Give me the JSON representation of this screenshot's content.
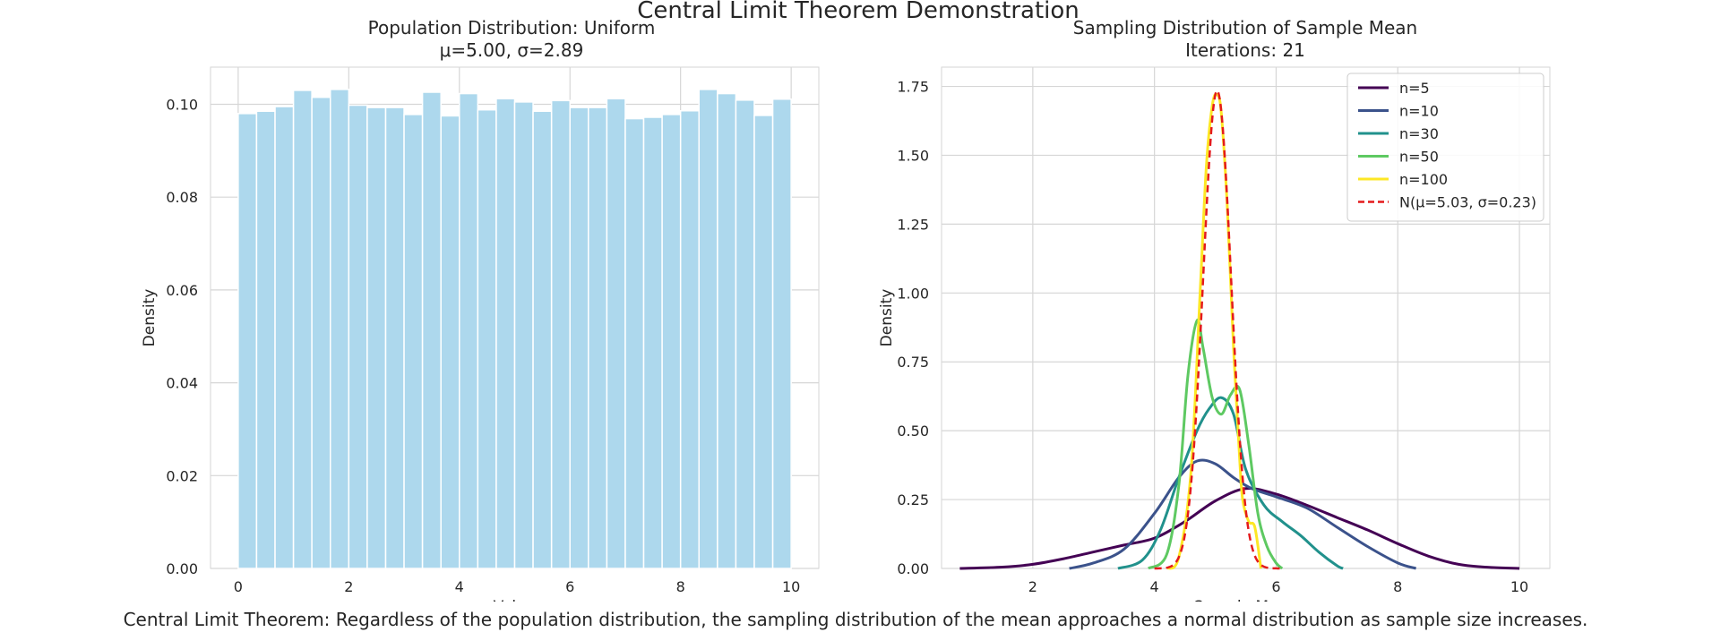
{
  "figure": {
    "suptitle": "Central Limit Theorem Demonstration",
    "caption": "Central Limit Theorem: Regardless of the population distribution, the sampling distribution of the mean approaches a normal distribution as sample size increases.",
    "colors": {
      "hist": "#add8ed",
      "grid": "#d6d6d6",
      "normal": "#e41a1c"
    }
  },
  "chart_data": [
    {
      "type": "bar",
      "title": "Population Distribution: Uniform",
      "subtitle": "μ=5.00, σ=2.89",
      "xlabel": "Value",
      "ylabel": "Density",
      "xlim": [
        -0.5,
        10.5
      ],
      "ylim": [
        0,
        0.108
      ],
      "xticks": [
        "0",
        "2",
        "4",
        "6",
        "8",
        "10"
      ],
      "yticks": [
        "0.00",
        "0.02",
        "0.04",
        "0.06",
        "0.08",
        "0.10"
      ],
      "grid": true,
      "bin_edges": [
        0,
        0.333,
        0.667,
        1.0,
        1.333,
        1.667,
        2.0,
        2.333,
        2.667,
        3.0,
        3.333,
        3.667,
        4.0,
        4.333,
        4.667,
        5.0,
        5.333,
        5.667,
        6.0,
        6.333,
        6.667,
        7.0,
        7.333,
        7.667,
        8.0,
        8.333,
        8.667,
        9.0,
        9.333,
        9.667,
        10.0
      ],
      "values": [
        0.098,
        0.0985,
        0.0995,
        0.103,
        0.1015,
        0.1032,
        0.0998,
        0.0993,
        0.0993,
        0.0978,
        0.1026,
        0.0975,
        0.1023,
        0.0988,
        0.1012,
        0.1005,
        0.0985,
        0.1008,
        0.0993,
        0.0993,
        0.1012,
        0.0969,
        0.0972,
        0.0978,
        0.0986,
        0.1032,
        0.1023,
        0.1009,
        0.0976,
        0.1011
      ]
    },
    {
      "type": "line",
      "title": "Sampling Distribution of Sample Mean",
      "subtitle": "Iterations: 21",
      "xlabel": "Sample Mean",
      "ylabel": "Density",
      "xlim": [
        0.5,
        10.5
      ],
      "ylim": [
        0,
        1.82
      ],
      "xticks": [
        "2",
        "4",
        "6",
        "8",
        "10"
      ],
      "yticks": [
        "0.00",
        "0.25",
        "0.50",
        "0.75",
        "1.00",
        "1.25",
        "1.50",
        "1.75"
      ],
      "grid": true,
      "legend": "top-right",
      "series": [
        {
          "name": "n=5",
          "color": "#440154",
          "x": [
            0.8,
            1.5,
            2.0,
            2.5,
            3.0,
            3.5,
            4.0,
            4.5,
            5.0,
            5.5,
            6.0,
            6.5,
            7.0,
            7.5,
            8.0,
            8.5,
            9.0,
            9.5,
            10.0
          ],
          "y": [
            0.0,
            0.005,
            0.015,
            0.035,
            0.06,
            0.085,
            0.11,
            0.17,
            0.245,
            0.29,
            0.27,
            0.23,
            0.185,
            0.14,
            0.09,
            0.045,
            0.015,
            0.004,
            0.0
          ]
        },
        {
          "name": "n=10",
          "color": "#3b528b",
          "x": [
            2.6,
            3.0,
            3.5,
            4.0,
            4.4,
            4.7,
            5.0,
            5.3,
            5.6,
            6.0,
            6.5,
            7.0,
            7.5,
            8.0,
            8.3
          ],
          "y": [
            0.0,
            0.02,
            0.07,
            0.2,
            0.33,
            0.39,
            0.38,
            0.33,
            0.29,
            0.26,
            0.22,
            0.15,
            0.08,
            0.02,
            0.0
          ]
        },
        {
          "name": "n=30",
          "color": "#21918c",
          "x": [
            3.4,
            3.8,
            4.1,
            4.4,
            4.7,
            4.9,
            5.1,
            5.3,
            5.5,
            5.8,
            6.1,
            6.4,
            6.7,
            7.0,
            7.1
          ],
          "y": [
            0.0,
            0.03,
            0.14,
            0.33,
            0.5,
            0.58,
            0.62,
            0.56,
            0.36,
            0.23,
            0.17,
            0.12,
            0.06,
            0.01,
            0.0
          ]
        },
        {
          "name": "n=50",
          "color": "#5ec962",
          "x": [
            3.9,
            4.2,
            4.4,
            4.55,
            4.7,
            4.8,
            4.95,
            5.1,
            5.25,
            5.4,
            5.55,
            5.7,
            5.85,
            6.0,
            6.1
          ],
          "y": [
            0.0,
            0.05,
            0.3,
            0.7,
            0.9,
            0.8,
            0.62,
            0.56,
            0.63,
            0.65,
            0.45,
            0.2,
            0.08,
            0.02,
            0.0
          ]
        },
        {
          "name": "n=100",
          "color": "#fde725",
          "x": [
            4.2,
            4.4,
            4.6,
            4.75,
            4.85,
            4.95,
            5.03,
            5.1,
            5.2,
            5.3,
            5.4,
            5.45,
            5.55,
            5.65,
            5.75
          ],
          "y": [
            0.0,
            0.04,
            0.35,
            1.0,
            1.45,
            1.68,
            1.72,
            1.65,
            1.3,
            0.8,
            0.4,
            0.25,
            0.17,
            0.15,
            0.0
          ]
        }
      ],
      "normal_fit": {
        "name": "N(μ=5.03, σ=0.23)",
        "mu": 5.03,
        "sigma": 0.23,
        "xrange": [
          4.0,
          6.1
        ]
      }
    }
  ]
}
